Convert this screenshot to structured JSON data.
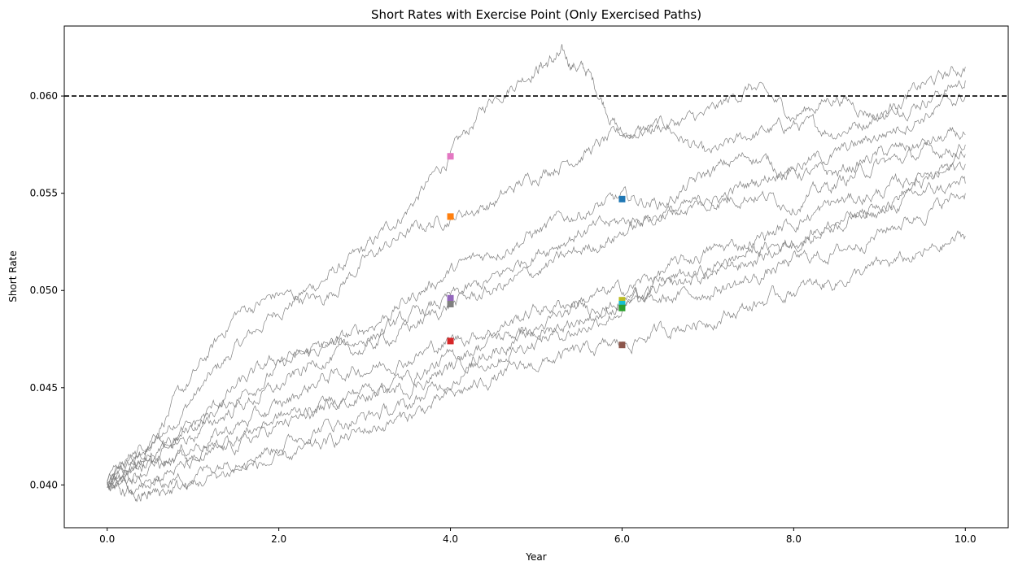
{
  "chart_data": {
    "type": "line",
    "title": "Short Rates with Exercise Point (Only Exercised Paths)",
    "xlabel": "Year",
    "ylabel": "Short Rate",
    "xlim": [
      -0.5,
      10.5
    ],
    "ylim": [
      0.0378,
      0.0636
    ],
    "x_ticks": [
      0.0,
      2.0,
      4.0,
      6.0,
      8.0,
      10.0
    ],
    "x_tick_labels": [
      "0.0",
      "2.0",
      "4.0",
      "6.0",
      "8.0",
      "10.0"
    ],
    "y_ticks": [
      0.04,
      0.045,
      0.05,
      0.055,
      0.06
    ],
    "y_tick_labels": [
      "0.040",
      "0.045",
      "0.050",
      "0.055",
      "0.060"
    ],
    "grid": false,
    "legend": "none",
    "threshold": {
      "y": 0.06,
      "style": "dashed",
      "color": "#000000"
    },
    "path_color": "#808080",
    "series": [
      {
        "exercise": {
          "x": 4.0,
          "y": 0.0569,
          "color": "#e377c2"
        },
        "points": [
          [
            0,
            0.04
          ],
          [
            0.5,
            0.0418
          ],
          [
            1,
            0.0445
          ],
          [
            1.5,
            0.047
          ],
          [
            2,
            0.049
          ],
          [
            2.5,
            0.0505
          ],
          [
            3,
            0.052
          ],
          [
            3.5,
            0.0542
          ],
          [
            4,
            0.0569
          ],
          [
            4.5,
            0.06
          ],
          [
            5,
            0.0615
          ],
          [
            5.3,
            0.062
          ],
          [
            5.6,
            0.0612
          ],
          [
            6,
            0.058
          ],
          [
            6.5,
            0.0585
          ],
          [
            7,
            0.0568
          ],
          [
            7.5,
            0.058
          ],
          [
            8,
            0.0585
          ],
          [
            8.5,
            0.0582
          ],
          [
            9,
            0.059
          ],
          [
            9.5,
            0.0598
          ],
          [
            10,
            0.0608
          ]
        ]
      },
      {
        "exercise": {
          "x": 4.0,
          "y": 0.0538,
          "color": "#ff7f0e"
        },
        "points": [
          [
            0,
            0.04
          ],
          [
            0.5,
            0.0425
          ],
          [
            1,
            0.0455
          ],
          [
            1.5,
            0.0488
          ],
          [
            2,
            0.0498
          ],
          [
            2.5,
            0.0495
          ],
          [
            3,
            0.0515
          ],
          [
            3.5,
            0.053
          ],
          [
            4,
            0.0538
          ],
          [
            4.5,
            0.0545
          ],
          [
            5,
            0.056
          ],
          [
            5.5,
            0.057
          ],
          [
            6,
            0.058
          ],
          [
            6.5,
            0.0585
          ],
          [
            7,
            0.059
          ],
          [
            7.5,
            0.0605
          ],
          [
            8,
            0.059
          ],
          [
            8.5,
            0.06
          ],
          [
            9,
            0.059
          ],
          [
            9.5,
            0.0605
          ],
          [
            10,
            0.0615
          ]
        ]
      },
      {
        "exercise": {
          "x": 6.0,
          "y": 0.0547,
          "color": "#1f77b4"
        },
        "points": [
          [
            0,
            0.04
          ],
          [
            0.5,
            0.041
          ],
          [
            1,
            0.043
          ],
          [
            1.5,
            0.0445
          ],
          [
            2,
            0.046
          ],
          [
            2.5,
            0.047
          ],
          [
            3,
            0.048
          ],
          [
            3.5,
            0.0495
          ],
          [
            4,
            0.051
          ],
          [
            4.5,
            0.052
          ],
          [
            5,
            0.053
          ],
          [
            5.5,
            0.054
          ],
          [
            6,
            0.0547
          ],
          [
            6.5,
            0.0545
          ],
          [
            7,
            0.056
          ],
          [
            7.5,
            0.057
          ],
          [
            8,
            0.056
          ],
          [
            8.5,
            0.056
          ],
          [
            9,
            0.057
          ],
          [
            9.5,
            0.0575
          ],
          [
            10,
            0.058
          ]
        ]
      },
      {
        "exercise": {
          "x": 4.0,
          "y": 0.0496,
          "color": "#9467bd"
        },
        "points": [
          [
            0,
            0.04
          ],
          [
            0.5,
            0.042
          ],
          [
            1,
            0.043
          ],
          [
            1.5,
            0.045
          ],
          [
            2,
            0.0465
          ],
          [
            2.5,
            0.047
          ],
          [
            3,
            0.0475
          ],
          [
            3.5,
            0.0485
          ],
          [
            4,
            0.0496
          ],
          [
            4.5,
            0.0505
          ],
          [
            5,
            0.052
          ],
          [
            5.5,
            0.053
          ],
          [
            6,
            0.0535
          ],
          [
            6.5,
            0.054
          ],
          [
            7,
            0.0545
          ],
          [
            7.5,
            0.0555
          ],
          [
            8,
            0.0565
          ],
          [
            8.5,
            0.057
          ],
          [
            9,
            0.058
          ],
          [
            9.5,
            0.059
          ],
          [
            10,
            0.06
          ]
        ]
      },
      {
        "exercise": {
          "x": 4.0,
          "y": 0.0493,
          "color": "#7f7f7f"
        },
        "points": [
          [
            0,
            0.04
          ],
          [
            0.5,
            0.0415
          ],
          [
            1,
            0.0425
          ],
          [
            1.5,
            0.044
          ],
          [
            2,
            0.045
          ],
          [
            2.5,
            0.0465
          ],
          [
            3,
            0.047
          ],
          [
            3.5,
            0.048
          ],
          [
            4,
            0.0493
          ],
          [
            4.5,
            0.05
          ],
          [
            5,
            0.051
          ],
          [
            5.5,
            0.052
          ],
          [
            6,
            0.053
          ],
          [
            6.5,
            0.054
          ],
          [
            7,
            0.0545
          ],
          [
            7.5,
            0.055
          ],
          [
            8,
            0.0545
          ],
          [
            8.5,
            0.0555
          ],
          [
            9,
            0.0565
          ],
          [
            9.5,
            0.057
          ],
          [
            10,
            0.0575
          ]
        ]
      },
      {
        "exercise": {
          "x": 4.0,
          "y": 0.0474,
          "color": "#d62728"
        },
        "points": [
          [
            0,
            0.04
          ],
          [
            0.5,
            0.0412
          ],
          [
            1,
            0.042
          ],
          [
            1.5,
            0.043
          ],
          [
            2,
            0.044
          ],
          [
            2.5,
            0.0455
          ],
          [
            3,
            0.046
          ],
          [
            3.5,
            0.0465
          ],
          [
            4,
            0.0474
          ],
          [
            4.5,
            0.048
          ],
          [
            5,
            0.049
          ],
          [
            5.5,
            0.0495
          ],
          [
            6,
            0.05
          ],
          [
            6.5,
            0.051
          ],
          [
            7,
            0.052
          ],
          [
            7.5,
            0.0525
          ],
          [
            8,
            0.0535
          ],
          [
            8.5,
            0.0545
          ],
          [
            9,
            0.055
          ],
          [
            9.5,
            0.056
          ],
          [
            10,
            0.057
          ]
        ]
      },
      {
        "exercise": {
          "x": 6.0,
          "y": 0.0495,
          "color": "#bcbd22"
        },
        "points": [
          [
            0,
            0.04
          ],
          [
            0.5,
            0.0408
          ],
          [
            1,
            0.0415
          ],
          [
            1.5,
            0.0425
          ],
          [
            2,
            0.0435
          ],
          [
            2.5,
            0.044
          ],
          [
            3,
            0.045
          ],
          [
            3.5,
            0.0455
          ],
          [
            4,
            0.0465
          ],
          [
            4.5,
            0.0475
          ],
          [
            5,
            0.048
          ],
          [
            5.5,
            0.049
          ],
          [
            6,
            0.0495
          ],
          [
            6.5,
            0.0505
          ],
          [
            7,
            0.051
          ],
          [
            7.5,
            0.052
          ],
          [
            8,
            0.0525
          ],
          [
            8.5,
            0.0535
          ],
          [
            9,
            0.0545
          ],
          [
            9.5,
            0.0555
          ],
          [
            10,
            0.0565
          ]
        ]
      },
      {
        "exercise": {
          "x": 6.0,
          "y": 0.0493,
          "color": "#17becf"
        },
        "points": [
          [
            0,
            0.04
          ],
          [
            0.5,
            0.0405
          ],
          [
            1,
            0.041
          ],
          [
            1.5,
            0.042
          ],
          [
            2,
            0.043
          ],
          [
            2.5,
            0.0438
          ],
          [
            3,
            0.0445
          ],
          [
            3.5,
            0.045
          ],
          [
            4,
            0.046
          ],
          [
            4.5,
            0.047
          ],
          [
            5,
            0.0478
          ],
          [
            5.5,
            0.0485
          ],
          [
            6,
            0.0493
          ],
          [
            6.5,
            0.05
          ],
          [
            7,
            0.0508
          ],
          [
            7.5,
            0.0515
          ],
          [
            8,
            0.0525
          ],
          [
            8.5,
            0.0535
          ],
          [
            9,
            0.054
          ],
          [
            9.5,
            0.055
          ],
          [
            10,
            0.0555
          ]
        ]
      },
      {
        "exercise": {
          "x": 6.0,
          "y": 0.0491,
          "color": "#2ca02c"
        },
        "points": [
          [
            0,
            0.04
          ],
          [
            0.5,
            0.04
          ],
          [
            1,
            0.0405
          ],
          [
            1.5,
            0.0415
          ],
          [
            2,
            0.042
          ],
          [
            2.5,
            0.043
          ],
          [
            3,
            0.0435
          ],
          [
            3.5,
            0.044
          ],
          [
            4,
            0.0455
          ],
          [
            4.5,
            0.0465
          ],
          [
            5,
            0.0475
          ],
          [
            5.5,
            0.048
          ],
          [
            6,
            0.0491
          ],
          [
            6.5,
            0.0495
          ],
          [
            7,
            0.05
          ],
          [
            7.5,
            0.0505
          ],
          [
            8,
            0.0515
          ],
          [
            8.5,
            0.052
          ],
          [
            9,
            0.053
          ],
          [
            9.5,
            0.054
          ],
          [
            10,
            0.055
          ]
        ]
      },
      {
        "exercise": {
          "x": 6.0,
          "y": 0.0472,
          "color": "#8c564b"
        },
        "points": [
          [
            0,
            0.04
          ],
          [
            0.3,
            0.0393
          ],
          [
            0.6,
            0.0396
          ],
          [
            1,
            0.04
          ],
          [
            1.5,
            0.0408
          ],
          [
            2,
            0.0412
          ],
          [
            2.5,
            0.042
          ],
          [
            3,
            0.0428
          ],
          [
            3.5,
            0.0435
          ],
          [
            4,
            0.0445
          ],
          [
            4.5,
            0.0455
          ],
          [
            5,
            0.0462
          ],
          [
            5.5,
            0.0468
          ],
          [
            6,
            0.0472
          ],
          [
            6.5,
            0.048
          ],
          [
            7,
            0.0485
          ],
          [
            7.5,
            0.0492
          ],
          [
            8,
            0.05
          ],
          [
            8.5,
            0.0505
          ],
          [
            9,
            0.0512
          ],
          [
            9.5,
            0.0518
          ],
          [
            10,
            0.0528
          ]
        ]
      }
    ]
  }
}
